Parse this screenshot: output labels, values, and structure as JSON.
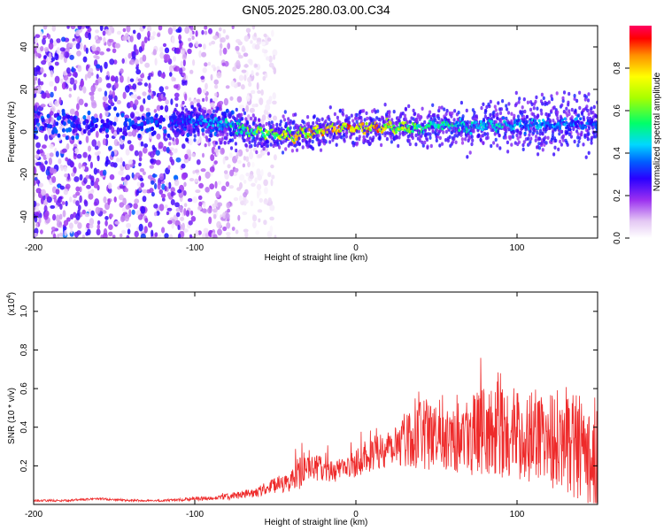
{
  "figure_title": "GN05.2025.280.03.00.C34",
  "chart_data": [
    {
      "type": "heatmap",
      "xlabel": "Height of straight line (km)",
      "ylabel": "Frequency (Hz)",
      "xlim": [
        -200,
        150
      ],
      "ylim": [
        -50,
        50
      ],
      "xticks": [
        -200,
        -100,
        0,
        100
      ],
      "yticks": [
        -40,
        -20,
        0,
        20,
        40
      ],
      "colorbar": {
        "label": "Normalized spectral amplitude",
        "range": [
          0,
          1
        ],
        "ticks": [
          "0.0",
          "0.2",
          "0.4",
          "0.6",
          "0.8"
        ],
        "tick_values": [
          0,
          0.2,
          0.4,
          0.6,
          0.8
        ]
      },
      "ridge": {
        "x": [
          -115,
          -100,
          -90,
          -80,
          -70,
          -60,
          -50,
          -40,
          -30,
          -20,
          -10,
          0,
          10,
          20,
          30,
          40,
          50,
          60,
          70,
          80,
          90,
          100,
          110,
          120,
          130,
          140,
          150
        ],
        "freq": [
          4,
          5,
          5,
          3,
          1,
          0,
          -1,
          -2,
          -1,
          1,
          2,
          2,
          2,
          2,
          2,
          2,
          3,
          3,
          2,
          3,
          3,
          3,
          4,
          3,
          4,
          4,
          3
        ],
        "amplitude": [
          0.35,
          0.4,
          0.45,
          0.5,
          0.6,
          0.65,
          0.75,
          0.8,
          0.85,
          0.9,
          0.92,
          0.92,
          0.9,
          0.85,
          0.7,
          0.6,
          0.55,
          0.55,
          0.5,
          0.5,
          0.5,
          0.45,
          0.45,
          0.45,
          0.4,
          0.4,
          0.35
        ]
      },
      "noise": {
        "x_range": [
          -200,
          -70
        ],
        "amplitude": 0.25
      }
    },
    {
      "type": "line",
      "color": "#ee2a2a",
      "xlabel": "Height of straight line (km)",
      "ylabel": "SNR (10 * v/v)",
      "scale_label": "(x10",
      "scale_exp": "4",
      "scale_suffix": ")",
      "xlim": [
        -200,
        150
      ],
      "ylim": [
        0,
        1.1
      ],
      "xticks": [
        -200,
        -100,
        0,
        100
      ],
      "yticks": [
        "0.2",
        "0.4",
        "0.6",
        "0.8",
        "1.0"
      ],
      "ytick_values": [
        0.2,
        0.4,
        0.6,
        0.8,
        1.0
      ],
      "series": [
        {
          "name": "SNR",
          "x": [
            -200,
            -180,
            -160,
            -140,
            -120,
            -100,
            -90,
            -80,
            -70,
            -60,
            -50,
            -40,
            -35,
            -30,
            -20,
            -10,
            0,
            10,
            20,
            30,
            40,
            50,
            60,
            70,
            80,
            90,
            100,
            110,
            120,
            130,
            140,
            150
          ],
          "mean": [
            0.02,
            0.02,
            0.03,
            0.02,
            0.02,
            0.03,
            0.03,
            0.04,
            0.05,
            0.07,
            0.1,
            0.12,
            0.16,
            0.2,
            0.18,
            0.17,
            0.22,
            0.26,
            0.3,
            0.34,
            0.36,
            0.36,
            0.38,
            0.36,
            0.38,
            0.37,
            0.36,
            0.36,
            0.34,
            0.34,
            0.3,
            0.28
          ],
          "spread": [
            0.01,
            0.01,
            0.01,
            0.01,
            0.01,
            0.02,
            0.02,
            0.03,
            0.04,
            0.05,
            0.08,
            0.1,
            0.18,
            0.12,
            0.12,
            0.12,
            0.14,
            0.16,
            0.2,
            0.26,
            0.32,
            0.36,
            0.38,
            0.38,
            0.42,
            0.42,
            0.44,
            0.44,
            0.46,
            0.5,
            0.54,
            0.58
          ]
        }
      ]
    }
  ]
}
